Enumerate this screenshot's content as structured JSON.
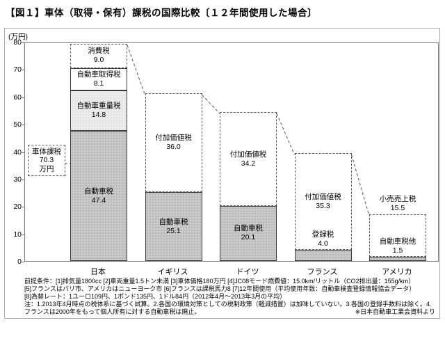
{
  "chart_data": {
    "type": "bar",
    "title": "【図１】車体（取得・保有）課税の国際比較〔１２年間使用した場合〕",
    "unit_label": "(万円)",
    "ylabel": "万円",
    "ylim": [
      0,
      80
    ],
    "ytick_interval": 10,
    "grid": false,
    "legend": "none",
    "categories": [
      "日本",
      "イギリス",
      "ドイツ",
      "フランス",
      "アメリカ"
    ],
    "bars": [
      {
        "country": "日本",
        "total_label": {
          "lines": [
            "車体課税",
            "70.3",
            "万円"
          ],
          "total_value": 70.3
        },
        "segments": [
          {
            "label": "自動車税",
            "value": 47.4,
            "style": "pattern-gray",
            "label_pos": "inside"
          },
          {
            "label": "自動車重量税",
            "value": 14.8,
            "style": "pattern-light",
            "label_pos": "inside"
          },
          {
            "label": "自動車取得税",
            "value": 8.1,
            "style": "white",
            "label_pos": "inside"
          }
        ],
        "dashed_segment": {
          "label": "消費税",
          "value": 9.0,
          "label_pos": "inside"
        }
      },
      {
        "country": "イギリス",
        "segments": [
          {
            "label": "自動車税",
            "value": 25.1,
            "style": "pattern-gray",
            "label_pos": "inside"
          }
        ],
        "dashed_segment": {
          "label": "付加価値税",
          "value": 36.0,
          "label_pos": "inside"
        }
      },
      {
        "country": "ドイツ",
        "segments": [
          {
            "label": "自動車税",
            "value": 20.1,
            "style": "pattern-gray",
            "label_pos": "inside"
          }
        ],
        "dashed_segment": {
          "label": "付加価値税",
          "value": 34.2,
          "label_pos": "inside"
        }
      },
      {
        "country": "フランス",
        "segments": [
          {
            "label": "登録税",
            "value": 4.0,
            "style": "pattern-gray",
            "label_pos": "above"
          }
        ],
        "dashed_segment": {
          "label": "付加価値税",
          "value": 35.3,
          "label_pos": "inside"
        }
      },
      {
        "country": "アメリカ",
        "segments": [
          {
            "label": "自動車税他",
            "value": 1.5,
            "style": "pattern-gray",
            "label_pos": "above"
          }
        ],
        "dashed_segment": {
          "label": "小売売上税",
          "value": 15.5,
          "label_pos": "above"
        }
      }
    ]
  },
  "footnotes": {
    "line1": "前提条件：[1]排気量1800cc [2]車両重量1.5トン未満 [3]車体価格180万円 [4]JC08モード燃費値：15.0km/リットル（CO2排出量：155g/km）",
    "line2": "[5]フランスはパリ市、アメリカはニューヨーク市 [6]フランスは課税馬力8 [7]12年間使用（平均使用年数：自動車検査登録情報協会データ）",
    "line3": "[8]為替レート：1ユーロ109円、1ポンド135円、1ドル84円（2012年4月～2013年3月の平均）",
    "note": "注：1.2013年4月時点の税体系に基づく試算。2.各国の環境対策としての税制政策（軽減措置）は加味していない。3.各国の登録手数料は除く。4.フランスは2000年をもって個人所有に対する自動車税は廃止。",
    "source": "※日本自動車工業会資料より"
  },
  "colors": {
    "bar_gray": "#c9c9c9",
    "bar_light": "#ececec",
    "dashed_line": "#555555",
    "text": "#000000"
  }
}
